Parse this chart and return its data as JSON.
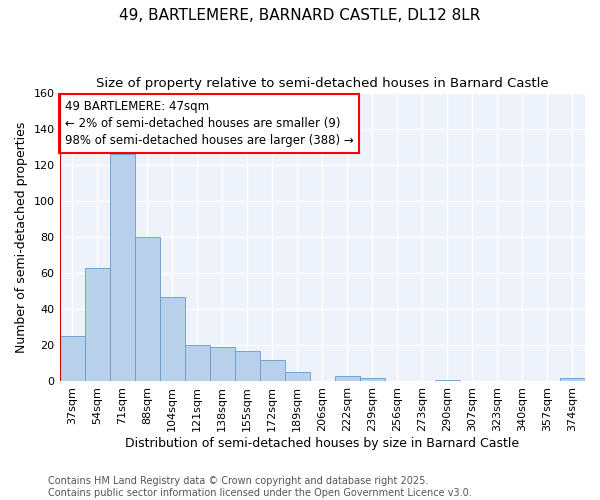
{
  "title": "49, BARTLEMERE, BARNARD CASTLE, DL12 8LR",
  "subtitle": "Size of property relative to semi-detached houses in Barnard Castle",
  "xlabel": "Distribution of semi-detached houses by size in Barnard Castle",
  "ylabel": "Number of semi-detached properties",
  "categories": [
    "37sqm",
    "54sqm",
    "71sqm",
    "88sqm",
    "104sqm",
    "121sqm",
    "138sqm",
    "155sqm",
    "172sqm",
    "189sqm",
    "206sqm",
    "222sqm",
    "239sqm",
    "256sqm",
    "273sqm",
    "290sqm",
    "307sqm",
    "323sqm",
    "340sqm",
    "357sqm",
    "374sqm"
  ],
  "values": [
    25,
    63,
    126,
    80,
    47,
    20,
    19,
    17,
    12,
    5,
    0,
    3,
    2,
    0,
    0,
    1,
    0,
    0,
    0,
    0,
    2
  ],
  "bar_color": "#b8d0ea",
  "bar_edge_color": "#6699cc",
  "vline_color": "#cc0000",
  "annotation_text": "49 BARTLEMERE: 47sqm\n← 2% of semi-detached houses are smaller (9)\n98% of semi-detached houses are larger (388) →",
  "ylim": [
    0,
    160
  ],
  "yticks": [
    0,
    20,
    40,
    60,
    80,
    100,
    120,
    140,
    160
  ],
  "background_color": "#eef2fb",
  "grid_color": "#ffffff",
  "footer_text": "Contains HM Land Registry data © Crown copyright and database right 2025.\nContains public sector information licensed under the Open Government Licence v3.0.",
  "title_fontsize": 11,
  "subtitle_fontsize": 9.5,
  "xlabel_fontsize": 9,
  "ylabel_fontsize": 9,
  "annotation_fontsize": 8.5,
  "footer_fontsize": 7,
  "tick_fontsize": 8
}
